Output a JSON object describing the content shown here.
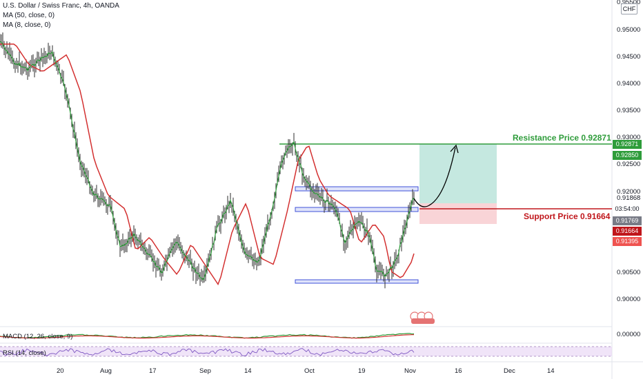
{
  "header": {
    "symbol_title": "U.S. Dollar / Swiss Franc, 4h, OANDA",
    "ma50_label": "MA (50, close, 0)",
    "ma8_label": "MA (8, close, 0)"
  },
  "currency": "CHF",
  "price_axis": {
    "ticks": [
      "0.95500",
      "0.95000",
      "0.94500",
      "0.94000",
      "0.93500",
      "0.93000",
      "0.92500",
      "0.92000",
      "0.91868",
      "0.90500",
      "0.90000",
      "0.00000"
    ],
    "tags": [
      {
        "text": "0.92871",
        "color": "#2e9c3a"
      },
      {
        "text": "0.92850",
        "color": "#2e9c3a"
      },
      {
        "text": "03:54:00",
        "color": "#ffffff"
      },
      {
        "text": "0.91769",
        "color": "#787b86"
      },
      {
        "text": "0.91664",
        "color": "#c0161b"
      },
      {
        "text": "0.91395",
        "color": "#ef5350"
      }
    ]
  },
  "time_axis": [
    "20",
    "Aug",
    "17",
    "Sep",
    "14",
    "Oct",
    "19",
    "Nov",
    "16",
    "Dec",
    "14"
  ],
  "annotations": {
    "resistance": "Resistance Price 0.92871",
    "support": "Support Price 0.91664",
    "resistance_color": "#2e9c3a",
    "support_color": "#c0161b"
  },
  "indicators": {
    "macd_label": "MACD (12, 26, close, 9)",
    "rsi_label": "RSI (14, close)"
  },
  "colors": {
    "up_candle": "#2b2b2b",
    "ma50": "#d32f2f",
    "ma8": "#2e9c3a",
    "zone_box": "#3f51d8",
    "target_zone": "#b2e0d6",
    "stop_zone": "#f7c6c9",
    "rsi_band": "#e9d8f5"
  }
}
